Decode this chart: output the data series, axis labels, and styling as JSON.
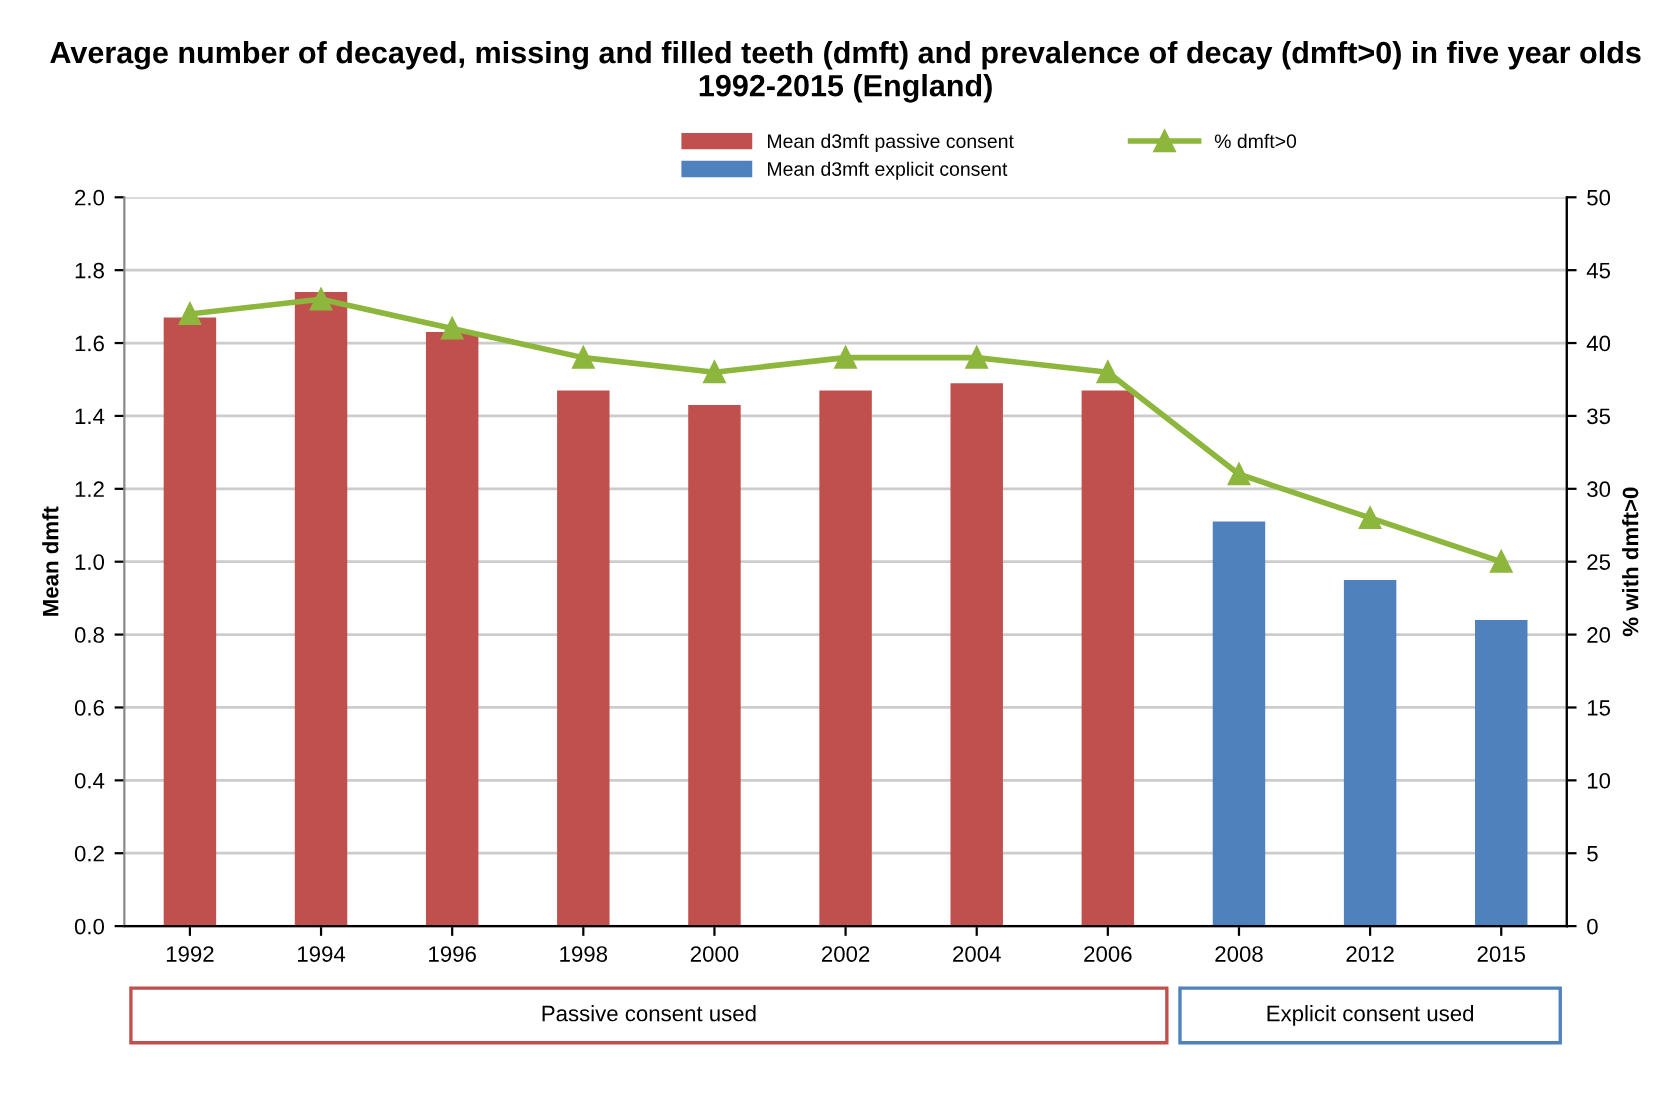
{
  "chart_data": {
    "type": "bar",
    "title": "Average number of decayed, missing and filled teeth (dmft) and prevalence of decay (dmft>0) in five year olds 1992-2015 (England)",
    "categories": [
      "1992",
      "1994",
      "1996",
      "1998",
      "2000",
      "2002",
      "2004",
      "2006",
      "2008",
      "2012",
      "2015"
    ],
    "series": [
      {
        "name": "Mean d3mft passive consent",
        "color": "#c0504d",
        "values": [
          1.67,
          1.74,
          1.63,
          1.47,
          1.43,
          1.47,
          1.49,
          1.47,
          null,
          null,
          null
        ]
      },
      {
        "name": "Mean d3mft explicit consent",
        "color": "#4f81bd",
        "values": [
          null,
          null,
          null,
          null,
          null,
          null,
          null,
          null,
          1.11,
          0.95,
          0.84
        ]
      },
      {
        "name": "% dmft>0",
        "type": "line",
        "axis": "y2",
        "color": "#8db63c",
        "marker": "triangle",
        "values": [
          42,
          43,
          41,
          39,
          38,
          39,
          39,
          38,
          31,
          28,
          25
        ]
      }
    ],
    "ylabel": "Mean dmft",
    "y2label": "% with dmft>0",
    "ylim": [
      0,
      2
    ],
    "yticks": [
      {
        "value": 0,
        "label": "0.0"
      },
      {
        "value": 0.2,
        "label": "0.2"
      },
      {
        "value": 0.4,
        "label": "0.4"
      },
      {
        "value": 0.6,
        "label": "0.6"
      },
      {
        "value": 0.8,
        "label": "0.8"
      },
      {
        "value": 1,
        "label": "1.0"
      },
      {
        "value": 1.2,
        "label": "1.2"
      },
      {
        "value": 1.4,
        "label": "1.4"
      },
      {
        "value": 1.6,
        "label": "1.6"
      },
      {
        "value": 1.8,
        "label": "1.8"
      },
      {
        "value": 2,
        "label": "2.0"
      }
    ],
    "y2lim": [
      0,
      50
    ],
    "y2ticks": [
      0,
      5,
      10,
      15,
      20,
      25,
      30,
      35,
      40,
      45,
      50
    ],
    "grid": "y",
    "legend": "top",
    "annotations": [
      "Passive consent used",
      "Explicit consent used"
    ]
  }
}
